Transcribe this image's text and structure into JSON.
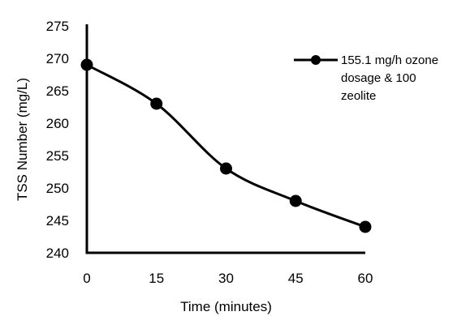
{
  "chart_data": {
    "type": "line",
    "title": "",
    "xlabel": "Time (minutes)",
    "ylabel": "TSS Number (mg/L)",
    "x": [
      0,
      15,
      30,
      45,
      60
    ],
    "x_ticks": [
      "0",
      "15",
      "30",
      "45",
      "60"
    ],
    "y_ticks": [
      "240",
      "245",
      "250",
      "255",
      "260",
      "265",
      "270",
      "275"
    ],
    "xlim": [
      0,
      60
    ],
    "ylim": [
      240,
      275
    ],
    "grid": false,
    "legend_position": "top-right",
    "series": [
      {
        "name": "155.1 mg/h ozone dosage & 100 zeolite",
        "name_lines": [
          "155.1 mg/h ozone",
          "dosage & 100",
          "zeolite"
        ],
        "values": [
          269,
          263,
          253,
          248,
          244
        ],
        "color": "#000000",
        "marker": "circle",
        "smooth": true
      }
    ]
  }
}
